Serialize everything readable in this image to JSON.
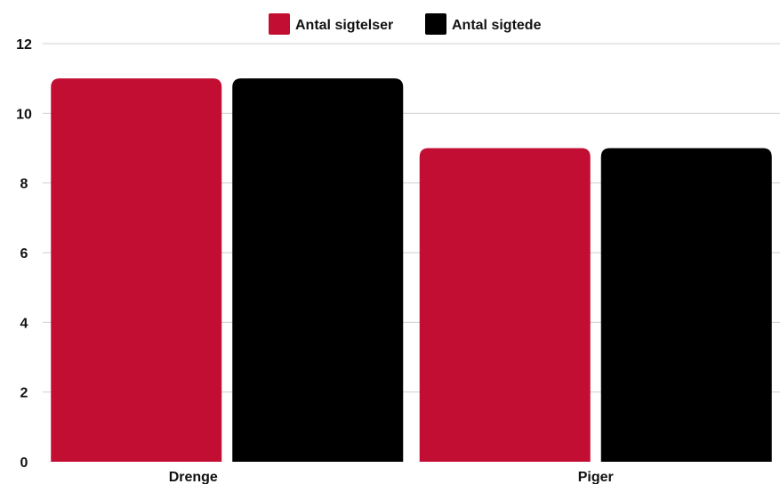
{
  "chart_data": {
    "type": "bar",
    "categories": [
      "Drenge",
      "Piger"
    ],
    "series": [
      {
        "name": "Antal sigtelser",
        "color": "#C20E33",
        "values": [
          11,
          9
        ]
      },
      {
        "name": "Antal sigtede",
        "color": "#000000",
        "values": [
          11,
          9
        ]
      }
    ],
    "ylim": [
      0,
      12
    ],
    "yticks": [
      0,
      2,
      4,
      6,
      8,
      10,
      12
    ],
    "grid": true,
    "legend_position": "top-center"
  }
}
